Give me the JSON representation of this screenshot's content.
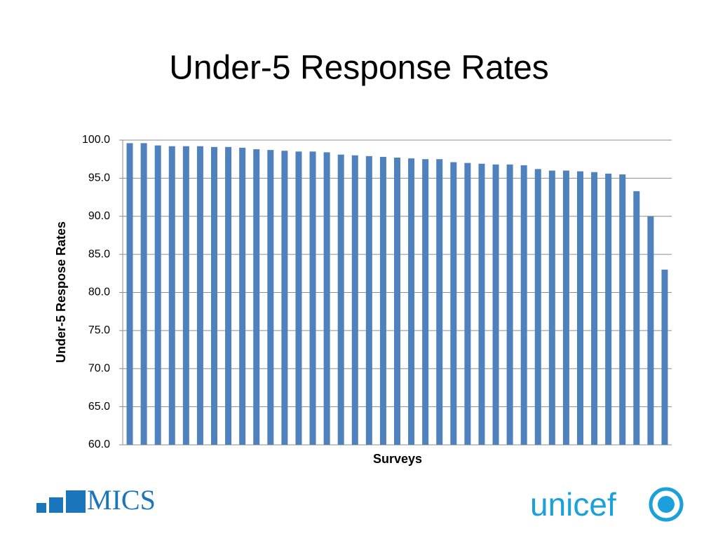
{
  "chart_data": {
    "type": "bar",
    "title": "Under-5 Response Rates",
    "xlabel": "Surveys",
    "ylabel": "Under-5 Respose Rates",
    "categories": [
      null,
      null,
      null,
      null,
      null,
      null,
      null,
      null,
      null,
      null,
      null,
      null,
      null,
      null,
      null,
      null,
      null,
      null,
      null,
      null,
      null,
      null,
      null,
      null,
      null,
      null,
      null,
      null,
      null,
      null,
      null,
      null,
      null,
      null,
      null,
      null,
      null,
      null,
      null
    ],
    "values": [
      99.6,
      99.6,
      99.3,
      99.2,
      99.2,
      99.2,
      99.1,
      99.1,
      99.0,
      98.8,
      98.7,
      98.6,
      98.5,
      98.5,
      98.4,
      98.1,
      98.0,
      97.9,
      97.8,
      97.7,
      97.6,
      97.5,
      97.5,
      97.1,
      97.0,
      96.9,
      96.8,
      96.8,
      96.7,
      96.2,
      96.0,
      96.0,
      95.9,
      95.8,
      95.6,
      95.5,
      93.3,
      90.0,
      83.0
    ],
    "color": "#4f81bd",
    "ylim": [
      60,
      100
    ],
    "yticks": [
      {
        "value": 60,
        "label": "60.0"
      },
      {
        "value": 65,
        "label": "65.0"
      },
      {
        "value": 70,
        "label": "70.0"
      },
      {
        "value": 75,
        "label": "75.0"
      },
      {
        "value": 80,
        "label": "80.0"
      },
      {
        "value": 85,
        "label": "85.0"
      },
      {
        "value": 90,
        "label": "90.0"
      },
      {
        "value": 95,
        "label": "95.0"
      },
      {
        "value": 100,
        "label": "100.0"
      }
    ],
    "grid": true
  },
  "logos": {
    "left": "MICS",
    "right": "unicef"
  }
}
